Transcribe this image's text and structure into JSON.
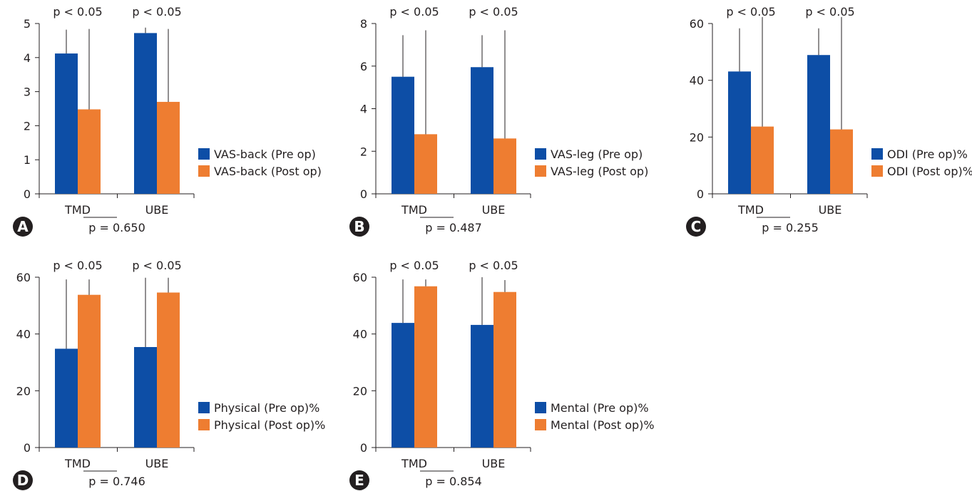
{
  "colors": {
    "pre": "#0d4ea6",
    "post": "#ee7d31",
    "axis": "#231f20",
    "badge": "#231f20"
  },
  "chart_data": [
    {
      "panel": "A",
      "type": "bar",
      "categories": [
        "TMD",
        "UBE"
      ],
      "series": [
        {
          "name": "VAS-back (Pre op)",
          "values": [
            4.12,
            4.72
          ],
          "error_top": [
            4.82,
            4.88
          ]
        },
        {
          "name": "VAS-back (Post op)",
          "values": [
            2.48,
            2.7
          ],
          "error_top": [
            4.84,
            4.84
          ]
        }
      ],
      "ylim": [
        0,
        5
      ],
      "yticks": [
        "0",
        "1",
        "2",
        "3",
        "4",
        "5"
      ],
      "significance": [
        "p < 0.05",
        "p < 0.05"
      ],
      "comparison": "p = 0.650"
    },
    {
      "panel": "B",
      "type": "bar",
      "categories": [
        "TMD",
        "UBE"
      ],
      "series": [
        {
          "name": "VAS-leg (Pre op)",
          "values": [
            5.5,
            5.95
          ],
          "error_top": [
            7.45,
            7.45
          ]
        },
        {
          "name": "VAS-leg (Post op)",
          "values": [
            2.8,
            2.6
          ],
          "error_top": [
            7.68,
            7.68
          ]
        }
      ],
      "ylim": [
        0,
        8
      ],
      "yticks": [
        "0",
        "2",
        "4",
        "6",
        "8"
      ],
      "significance": [
        "p < 0.05",
        "p < 0.05"
      ],
      "comparison": "p = 0.487"
    },
    {
      "panel": "C",
      "type": "bar",
      "categories": [
        "TMD",
        "UBE"
      ],
      "series": [
        {
          "name": "ODI (Pre op)%",
          "values": [
            43.1,
            48.9
          ],
          "error_top": [
            58.3,
            58.3
          ]
        },
        {
          "name": "ODI (Post op)%",
          "values": [
            23.7,
            22.7
          ],
          "error_top": [
            62.3,
            62.3
          ]
        }
      ],
      "ylim": [
        0,
        60
      ],
      "yticks": [
        "0",
        "20",
        "40",
        "60"
      ],
      "significance": [
        "p < 0.05",
        "p < 0.05"
      ],
      "comparison": "p = 0.255"
    },
    {
      "panel": "D",
      "type": "bar",
      "categories": [
        "TMD",
        "UBE"
      ],
      "series": [
        {
          "name": "Physical (Pre op)%",
          "values": [
            34.8,
            35.4
          ],
          "error_top": [
            59.2,
            59.8
          ]
        },
        {
          "name": "Physical (Post op)%",
          "values": [
            53.8,
            54.6
          ],
          "error_top": [
            59.2,
            59.8
          ]
        }
      ],
      "ylim": [
        0,
        60
      ],
      "yticks": [
        "0",
        "20",
        "40",
        "60"
      ],
      "significance": [
        "p < 0.05",
        "p < 0.05"
      ],
      "comparison": "p = 0.746"
    },
    {
      "panel": "E",
      "type": "bar",
      "categories": [
        "TMD",
        "UBE"
      ],
      "series": [
        {
          "name": "Mental (Pre op)%",
          "values": [
            43.9,
            43.2
          ],
          "error_top": [
            59.2,
            60.0
          ]
        },
        {
          "name": "Mental (Post op)%",
          "values": [
            56.8,
            54.8
          ],
          "error_top": [
            59.2,
            59.0
          ]
        }
      ],
      "ylim": [
        0,
        60
      ],
      "yticks": [
        "0",
        "20",
        "40",
        "60"
      ],
      "significance": [
        "p < 0.05",
        "p < 0.05"
      ],
      "comparison": "p = 0.854"
    }
  ]
}
